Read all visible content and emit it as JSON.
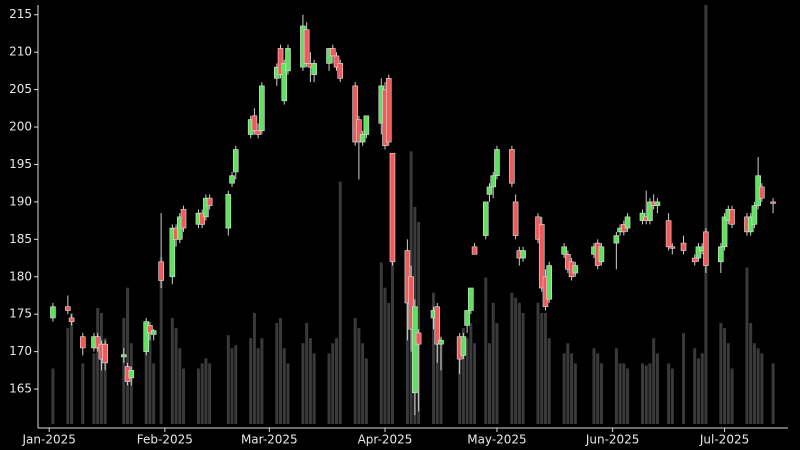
{
  "chart_data": {
    "type": "candlestick",
    "x": [
      "2025-01-02",
      "2025-01-06",
      "2025-01-07",
      "2025-01-10",
      "2025-01-13",
      "2025-01-14",
      "2025-01-15",
      "2025-01-16",
      "2025-01-21",
      "2025-01-22",
      "2025-01-23",
      "2025-01-27",
      "2025-01-28",
      "2025-01-29",
      "2025-01-31",
      "2025-02-03",
      "2025-02-04",
      "2025-02-05",
      "2025-02-06",
      "2025-02-10",
      "2025-02-11",
      "2025-02-12",
      "2025-02-13",
      "2025-02-18",
      "2025-02-19",
      "2025-02-20",
      "2025-02-24",
      "2025-02-25",
      "2025-02-26",
      "2025-02-27",
      "2025-03-03",
      "2025-03-04",
      "2025-03-05",
      "2025-03-06",
      "2025-03-10",
      "2025-03-11",
      "2025-03-12",
      "2025-03-13",
      "2025-03-17",
      "2025-03-18",
      "2025-03-19",
      "2025-03-20",
      "2025-03-24",
      "2025-03-25",
      "2025-03-26",
      "2025-03-27",
      "2025-03-31",
      "2025-04-01",
      "2025-04-02",
      "2025-04-03",
      "2025-04-07",
      "2025-04-08",
      "2025-04-09",
      "2025-04-10",
      "2025-04-14",
      "2025-04-15",
      "2025-04-16",
      "2025-04-21",
      "2025-04-22",
      "2025-04-23",
      "2025-04-24",
      "2025-04-25",
      "2025-04-28",
      "2025-04-29",
      "2025-04-30",
      "2025-05-01",
      "2025-05-05",
      "2025-05-06",
      "2025-05-07",
      "2025-05-08",
      "2025-05-12",
      "2025-05-13",
      "2025-05-14",
      "2025-05-15",
      "2025-05-19",
      "2025-05-20",
      "2025-05-21",
      "2025-05-22",
      "2025-05-27",
      "2025-05-28",
      "2025-05-29",
      "2025-06-02",
      "2025-06-03",
      "2025-06-04",
      "2025-06-05",
      "2025-06-09",
      "2025-06-10",
      "2025-06-11",
      "2025-06-12",
      "2025-06-13",
      "2025-06-16",
      "2025-06-17",
      "2025-06-20",
      "2025-06-23",
      "2025-06-24",
      "2025-06-25",
      "2025-06-26",
      "2025-06-30",
      "2025-07-01",
      "2025-07-02",
      "2025-07-03",
      "2025-07-07",
      "2025-07-08",
      "2025-07-09",
      "2025-07-10",
      "2025-07-11",
      "2025-07-14"
    ],
    "open": [
      174.5,
      176,
      174.5,
      172,
      170.5,
      172,
      171,
      171,
      169.3,
      168,
      166.5,
      170,
      173.5,
      172.3,
      182,
      180,
      186.5,
      185,
      189,
      187,
      188.5,
      188,
      190.5,
      186.5,
      192.5,
      194,
      199,
      201.5,
      199.5,
      199.5,
      206.5,
      210.5,
      203.5,
      207.5,
      208,
      213,
      208.5,
      207,
      208.5,
      210.5,
      209.5,
      208.5,
      205.5,
      201,
      198,
      199,
      200.5,
      205,
      206.5,
      196.5,
      183.5,
      180,
      164.5,
      172.5,
      174.5,
      176,
      171,
      172,
      169.5,
      173.5,
      175.5,
      184,
      185.5,
      191,
      192,
      193.5,
      197,
      190,
      183.5,
      182.5,
      188,
      187,
      180,
      177,
      183,
      183,
      182,
      180.5,
      183,
      184.5,
      182,
      184.5,
      186,
      187,
      186.5,
      187.5,
      188,
      187.5,
      190,
      189.5,
      187.5,
      184,
      184.5,
      182.5,
      182.5,
      183.5,
      186,
      182,
      184,
      187.5,
      189,
      188,
      186,
      187,
      189.5,
      192,
      190
    ],
    "high": [
      176.5,
      177.5,
      175,
      172.5,
      172.5,
      172.5,
      171.5,
      171.5,
      170.5,
      168.5,
      168,
      174.5,
      174,
      173,
      188.5,
      187,
      187,
      188.5,
      189.5,
      189,
      189,
      191,
      191,
      191.5,
      194,
      197.5,
      201.5,
      202.5,
      200.5,
      206,
      208.5,
      211,
      209,
      211,
      215,
      214,
      210,
      209,
      210.5,
      211,
      210,
      209,
      206,
      201.5,
      199.5,
      201.5,
      206.5,
      206,
      207,
      196.5,
      185,
      181.5,
      177,
      173,
      176,
      176.5,
      172,
      172.5,
      172.5,
      175.5,
      178.5,
      184.5,
      190,
      192.5,
      194,
      197.5,
      197.5,
      191,
      184,
      184,
      188.5,
      188,
      181,
      182,
      184.5,
      183.5,
      182.5,
      182,
      184.5,
      185,
      184.5,
      186,
      187,
      187.5,
      188.5,
      189,
      191.5,
      190.5,
      191,
      190.5,
      188.5,
      184.5,
      185.5,
      183,
      184.5,
      184.5,
      186.5,
      184.5,
      188.5,
      189.5,
      189.5,
      188.5,
      188.5,
      190,
      196,
      192.5,
      190.5
    ],
    "low": [
      174,
      175,
      173.5,
      169.5,
      170,
      170,
      167.5,
      167.5,
      168.5,
      165.5,
      165.5,
      169.5,
      171.5,
      171.5,
      178.5,
      179,
      184,
      184.5,
      186,
      186.5,
      186.5,
      187.5,
      189,
      185.5,
      192,
      193,
      198.5,
      199,
      198.5,
      199,
      205.5,
      206.5,
      203,
      207,
      207.5,
      208,
      206,
      206,
      207.5,
      208.5,
      207.5,
      206,
      197.5,
      193,
      197.5,
      198.5,
      199,
      197,
      197.5,
      181.5,
      171.5,
      170,
      161.5,
      162,
      173,
      168.5,
      167.5,
      167,
      169,
      172.5,
      175,
      183,
      185,
      190,
      190.5,
      193,
      192,
      185,
      181.5,
      182,
      184.5,
      178,
      175.5,
      176.5,
      182.5,
      180.5,
      179.5,
      180,
      182.5,
      181,
      181.5,
      181,
      185.5,
      185.5,
      186,
      187,
      187,
      187,
      189,
      188.5,
      183.5,
      183,
      183,
      181.5,
      182,
      183,
      180.5,
      180.5,
      183.5,
      187,
      186.5,
      185.5,
      185.5,
      186.5,
      189,
      190,
      188.5
    ],
    "close": [
      176,
      175.5,
      174,
      170.5,
      172,
      170.5,
      169,
      168.5,
      169.6,
      166,
      167.5,
      174,
      172.5,
      172.8,
      179.5,
      186.5,
      185,
      188,
      186.5,
      188.5,
      187,
      190.5,
      189.5,
      191,
      193.5,
      197,
      201,
      199.5,
      199,
      205.5,
      208,
      207,
      208.5,
      210.5,
      213.5,
      208.5,
      208,
      208.5,
      210.5,
      209.5,
      208,
      206.5,
      198,
      198,
      199,
      201.5,
      205.5,
      197.5,
      198,
      182,
      176.5,
      173,
      176,
      171,
      175.5,
      171,
      171.5,
      169,
      172,
      175.5,
      178.5,
      183,
      190,
      192,
      193.5,
      197,
      192.5,
      185.5,
      182.5,
      183.5,
      185,
      178.5,
      176,
      181.5,
      184,
      181,
      180,
      181.5,
      184,
      181.5,
      184,
      185.5,
      186.5,
      186,
      188,
      188.5,
      187.5,
      190,
      189.5,
      190,
      184,
      183.8,
      183.5,
      182,
      184,
      184,
      181.5,
      184,
      188,
      189,
      187,
      186,
      188,
      189.5,
      193.5,
      190.5,
      189.8
    ],
    "volume": [
      55,
      95,
      110,
      60,
      70,
      115,
      110,
      85,
      105,
      135,
      80,
      100,
      90,
      60,
      165,
      105,
      95,
      75,
      55,
      55,
      60,
      65,
      60,
      88,
      75,
      78,
      85,
      110,
      75,
      85,
      100,
      105,
      75,
      60,
      80,
      100,
      85,
      70,
      70,
      80,
      85,
      240,
      105,
      95,
      80,
      65,
      160,
      135,
      120,
      200,
      130,
      270,
      215,
      200,
      130,
      115,
      85,
      70,
      95,
      85,
      100,
      80,
      145,
      80,
      120,
      100,
      130,
      125,
      120,
      110,
      120,
      110,
      110,
      85,
      70,
      80,
      70,
      60,
      75,
      70,
      60,
      75,
      60,
      60,
      55,
      60,
      58,
      60,
      85,
      70,
      60,
      55,
      90,
      75,
      65,
      70,
      415,
      100,
      95,
      80,
      55,
      155,
      100,
      80,
      75,
      70,
      60
    ],
    "up_color": "#5fe05f",
    "down_color": "#f05a5a",
    "volume_color": "#3a3a3a",
    "xlim": [
      "2024-12-29",
      "2025-07-18"
    ],
    "xticks": [
      {
        "value": "2025-01-01",
        "label": "Jan-2025"
      },
      {
        "value": "2025-02-01",
        "label": "Feb-2025"
      },
      {
        "value": "2025-03-01",
        "label": "Mar-2025"
      },
      {
        "value": "2025-04-01",
        "label": "Apr-2025"
      },
      {
        "value": "2025-05-01",
        "label": "May-2025"
      },
      {
        "value": "2025-06-01",
        "label": "Jun-2025"
      },
      {
        "value": "2025-07-01",
        "label": "Jul-2025"
      }
    ],
    "ylim": [
      159.8,
      216.3
    ],
    "yticks": [
      165,
      170,
      175,
      180,
      185,
      190,
      195,
      200,
      205,
      210,
      215
    ]
  }
}
